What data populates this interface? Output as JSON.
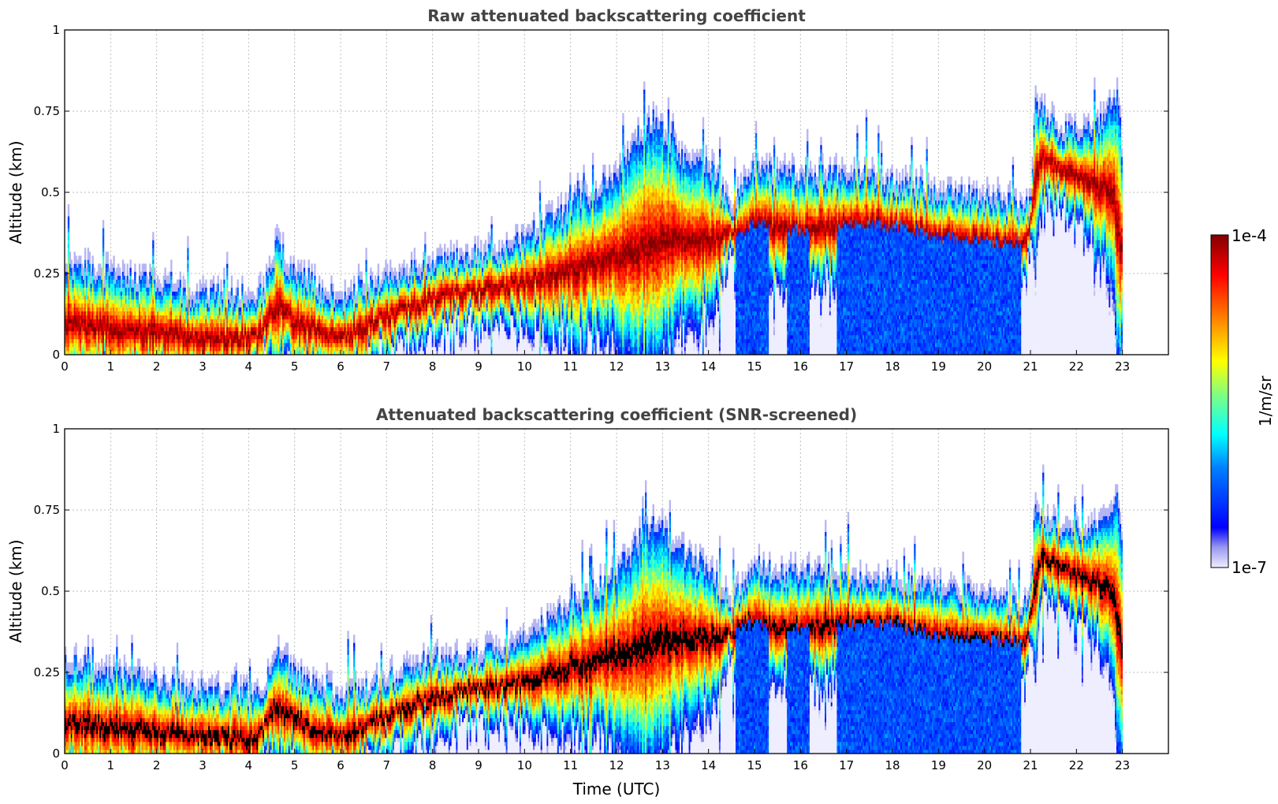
{
  "chart_data": [
    {
      "type": "heatmap",
      "title": "Raw attenuated backscattering coefficient",
      "xlabel": "",
      "ylabel": "Altitude (km)",
      "xlim": [
        0,
        24
      ],
      "ylim": [
        0,
        1
      ],
      "x_ticks": [
        "0",
        "1",
        "2",
        "3",
        "4",
        "5",
        "6",
        "7",
        "8",
        "9",
        "10",
        "11",
        "12",
        "13",
        "14",
        "15",
        "16",
        "17",
        "18",
        "19",
        "20",
        "21",
        "22",
        "23"
      ],
      "y_ticks": [
        "0",
        "0.25",
        "0.5",
        "0.75",
        "1"
      ],
      "grid": true,
      "data_end_hour": 23,
      "layer_top_km": [
        [
          0.0,
          0.28
        ],
        [
          1.0,
          0.24
        ],
        [
          2.0,
          0.22
        ],
        [
          2.8,
          0.18
        ],
        [
          4.3,
          0.18
        ],
        [
          4.6,
          0.33
        ],
        [
          5.0,
          0.24
        ],
        [
          6.0,
          0.17
        ],
        [
          7.0,
          0.22
        ],
        [
          8.0,
          0.28
        ],
        [
          9.0,
          0.3
        ],
        [
          10.0,
          0.35
        ],
        [
          11.0,
          0.45
        ],
        [
          12.0,
          0.55
        ],
        [
          12.8,
          0.72
        ],
        [
          13.5,
          0.6
        ],
        [
          14.0,
          0.58
        ],
        [
          14.5,
          0.45
        ],
        [
          15.0,
          0.58
        ],
        [
          15.5,
          0.55
        ],
        [
          16.0,
          0.55
        ],
        [
          17.0,
          0.55
        ],
        [
          18.0,
          0.53
        ],
        [
          19.0,
          0.5
        ],
        [
          20.0,
          0.48
        ],
        [
          21.0,
          0.45
        ],
        [
          21.1,
          0.76
        ],
        [
          21.5,
          0.7
        ],
        [
          22.0,
          0.68
        ],
        [
          22.5,
          0.7
        ],
        [
          22.9,
          0.8
        ],
        [
          23.0,
          0.6
        ]
      ],
      "peak_layer_km": [
        [
          0.0,
          0.1
        ],
        [
          1.0,
          0.08
        ],
        [
          2.0,
          0.07
        ],
        [
          3.0,
          0.05
        ],
        [
          4.2,
          0.05
        ],
        [
          4.6,
          0.15
        ],
        [
          5.0,
          0.1
        ],
        [
          6.0,
          0.05
        ],
        [
          7.0,
          0.12
        ],
        [
          8.0,
          0.17
        ],
        [
          9.0,
          0.2
        ],
        [
          10.0,
          0.22
        ],
        [
          11.0,
          0.26
        ],
        [
          12.0,
          0.3
        ],
        [
          13.0,
          0.35
        ],
        [
          14.0,
          0.35
        ],
        [
          15.0,
          0.4
        ],
        [
          16.0,
          0.38
        ],
        [
          17.0,
          0.4
        ],
        [
          18.0,
          0.4
        ],
        [
          19.0,
          0.36
        ],
        [
          20.0,
          0.35
        ],
        [
          20.9,
          0.34
        ],
        [
          21.2,
          0.6
        ],
        [
          22.0,
          0.55
        ],
        [
          22.8,
          0.5
        ],
        [
          23.0,
          0.3
        ]
      ],
      "deep_clear_intervals_hours": [
        [
          14.6,
          15.3
        ],
        [
          15.7,
          16.2
        ],
        [
          16.8,
          20.8
        ]
      ]
    },
    {
      "type": "heatmap",
      "title": "Attenuated backscattering coefficient (SNR-screened)",
      "xlabel": "Time (UTC)",
      "ylabel": "Altitude (km)",
      "xlim": [
        0,
        24
      ],
      "ylim": [
        0,
        1
      ],
      "x_ticks": [
        "0",
        "1",
        "2",
        "3",
        "4",
        "5",
        "6",
        "7",
        "8",
        "9",
        "10",
        "11",
        "12",
        "13",
        "14",
        "15",
        "16",
        "17",
        "18",
        "19",
        "20",
        "21",
        "22",
        "23"
      ],
      "y_ticks": [
        "0",
        "0.25",
        "0.5",
        "0.75",
        "1"
      ],
      "grid": true,
      "data_end_hour": 23,
      "saturated_color": "#000000"
    }
  ],
  "colorbar": {
    "label": "1/m/sr",
    "max_label": "1e-4",
    "min_label": "1e-7",
    "range": [
      1e-07,
      0.0001
    ],
    "scale": "log",
    "colormap": "jet"
  }
}
